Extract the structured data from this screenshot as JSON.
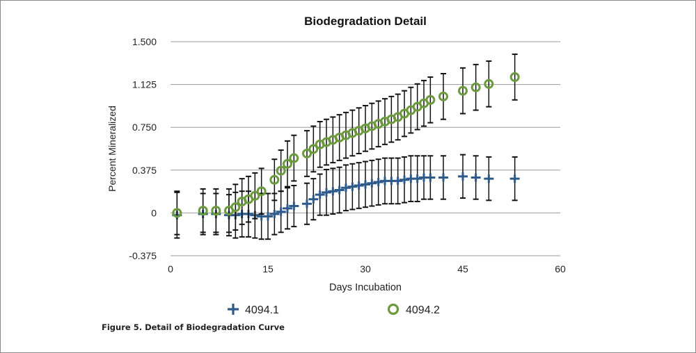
{
  "caption": "Figure 5.  Detail of Biodegradation Curve",
  "chart_data": {
    "type": "scatter",
    "title": "Biodegradation Detail",
    "xlabel": "Days Incubation",
    "ylabel": "Percent Mineralized",
    "xlim": [
      0,
      60
    ],
    "ylim": [
      -0.375,
      1.5
    ],
    "xticks": [
      0,
      15,
      30,
      45,
      60
    ],
    "yticks": [
      -0.375,
      0,
      0.375,
      0.75,
      1.125,
      1.5
    ],
    "ytick_labels": [
      "-0.375",
      "0",
      "0.375",
      "0.750",
      "1.125",
      "1.500"
    ],
    "grid": "horizontal",
    "legend_position": "bottom",
    "series": [
      {
        "name": "4094.1",
        "marker": "plus",
        "color": "#2e5a8a",
        "points": [
          {
            "x": 1,
            "y": -0.02,
            "err": 0.2
          },
          {
            "x": 5,
            "y": -0.01,
            "err": 0.18
          },
          {
            "x": 7,
            "y": -0.01,
            "err": 0.18
          },
          {
            "x": 9,
            "y": -0.02,
            "err": 0.18
          },
          {
            "x": 10,
            "y": -0.02,
            "err": 0.2
          },
          {
            "x": 11,
            "y": -0.01,
            "err": 0.2
          },
          {
            "x": 12,
            "y": -0.01,
            "err": 0.2
          },
          {
            "x": 13,
            "y": -0.02,
            "err": 0.2
          },
          {
            "x": 14,
            "y": -0.03,
            "err": 0.2
          },
          {
            "x": 15,
            "y": -0.03,
            "err": 0.2
          },
          {
            "x": 16,
            "y": -0.01,
            "err": 0.18
          },
          {
            "x": 17,
            "y": 0.01,
            "err": 0.18
          },
          {
            "x": 18,
            "y": 0.04,
            "err": 0.18
          },
          {
            "x": 19,
            "y": 0.06,
            "err": 0.18
          },
          {
            "x": 21,
            "y": 0.08,
            "err": 0.18
          },
          {
            "x": 22,
            "y": 0.12,
            "err": 0.18
          },
          {
            "x": 23,
            "y": 0.16,
            "err": 0.18
          },
          {
            "x": 24,
            "y": 0.18,
            "err": 0.2
          },
          {
            "x": 25,
            "y": 0.19,
            "err": 0.2
          },
          {
            "x": 26,
            "y": 0.2,
            "err": 0.2
          },
          {
            "x": 27,
            "y": 0.22,
            "err": 0.2
          },
          {
            "x": 28,
            "y": 0.23,
            "err": 0.2
          },
          {
            "x": 29,
            "y": 0.24,
            "err": 0.2
          },
          {
            "x": 30,
            "y": 0.25,
            "err": 0.2
          },
          {
            "x": 31,
            "y": 0.26,
            "err": 0.2
          },
          {
            "x": 32,
            "y": 0.27,
            "err": 0.2
          },
          {
            "x": 33,
            "y": 0.28,
            "err": 0.2
          },
          {
            "x": 34,
            "y": 0.28,
            "err": 0.2
          },
          {
            "x": 35,
            "y": 0.28,
            "err": 0.2
          },
          {
            "x": 36,
            "y": 0.29,
            "err": 0.2
          },
          {
            "x": 37,
            "y": 0.3,
            "err": 0.2
          },
          {
            "x": 38,
            "y": 0.3,
            "err": 0.2
          },
          {
            "x": 39,
            "y": 0.31,
            "err": 0.19
          },
          {
            "x": 40,
            "y": 0.31,
            "err": 0.19
          },
          {
            "x": 42,
            "y": 0.31,
            "err": 0.19
          },
          {
            "x": 45,
            "y": 0.32,
            "err": 0.19
          },
          {
            "x": 47,
            "y": 0.31,
            "err": 0.19
          },
          {
            "x": 49,
            "y": 0.3,
            "err": 0.19
          },
          {
            "x": 53,
            "y": 0.3,
            "err": 0.19
          }
        ]
      },
      {
        "name": "4094.2",
        "marker": "circle",
        "color": "#6a9a3c",
        "points": [
          {
            "x": 1,
            "y": 0.0,
            "err": 0.19
          },
          {
            "x": 5,
            "y": 0.02,
            "err": 0.19
          },
          {
            "x": 7,
            "y": 0.02,
            "err": 0.19
          },
          {
            "x": 9,
            "y": 0.02,
            "err": 0.19
          },
          {
            "x": 10,
            "y": 0.05,
            "err": 0.2
          },
          {
            "x": 11,
            "y": 0.1,
            "err": 0.2
          },
          {
            "x": 12,
            "y": 0.12,
            "err": 0.2
          },
          {
            "x": 13,
            "y": 0.15,
            "err": 0.2
          },
          {
            "x": 14,
            "y": 0.19,
            "err": 0.2
          },
          {
            "x": 16,
            "y": 0.29,
            "err": 0.18
          },
          {
            "x": 17,
            "y": 0.37,
            "err": 0.18
          },
          {
            "x": 18,
            "y": 0.43,
            "err": 0.2
          },
          {
            "x": 19,
            "y": 0.48,
            "err": 0.2
          },
          {
            "x": 21,
            "y": 0.52,
            "err": 0.2
          },
          {
            "x": 22,
            "y": 0.56,
            "err": 0.2
          },
          {
            "x": 23,
            "y": 0.6,
            "err": 0.2
          },
          {
            "x": 24,
            "y": 0.62,
            "err": 0.2
          },
          {
            "x": 25,
            "y": 0.64,
            "err": 0.2
          },
          {
            "x": 26,
            "y": 0.66,
            "err": 0.2
          },
          {
            "x": 27,
            "y": 0.68,
            "err": 0.2
          },
          {
            "x": 28,
            "y": 0.7,
            "err": 0.2
          },
          {
            "x": 29,
            "y": 0.72,
            "err": 0.2
          },
          {
            "x": 30,
            "y": 0.74,
            "err": 0.2
          },
          {
            "x": 31,
            "y": 0.76,
            "err": 0.2
          },
          {
            "x": 32,
            "y": 0.78,
            "err": 0.2
          },
          {
            "x": 33,
            "y": 0.8,
            "err": 0.2
          },
          {
            "x": 34,
            "y": 0.82,
            "err": 0.2
          },
          {
            "x": 35,
            "y": 0.84,
            "err": 0.2
          },
          {
            "x": 36,
            "y": 0.87,
            "err": 0.2
          },
          {
            "x": 37,
            "y": 0.9,
            "err": 0.2
          },
          {
            "x": 38,
            "y": 0.93,
            "err": 0.2
          },
          {
            "x": 39,
            "y": 0.96,
            "err": 0.2
          },
          {
            "x": 40,
            "y": 0.99,
            "err": 0.2
          },
          {
            "x": 42,
            "y": 1.02,
            "err": 0.2
          },
          {
            "x": 45,
            "y": 1.07,
            "err": 0.2
          },
          {
            "x": 47,
            "y": 1.1,
            "err": 0.2
          },
          {
            "x": 49,
            "y": 1.13,
            "err": 0.2
          },
          {
            "x": 53,
            "y": 1.19,
            "err": 0.2
          }
        ]
      }
    ]
  }
}
